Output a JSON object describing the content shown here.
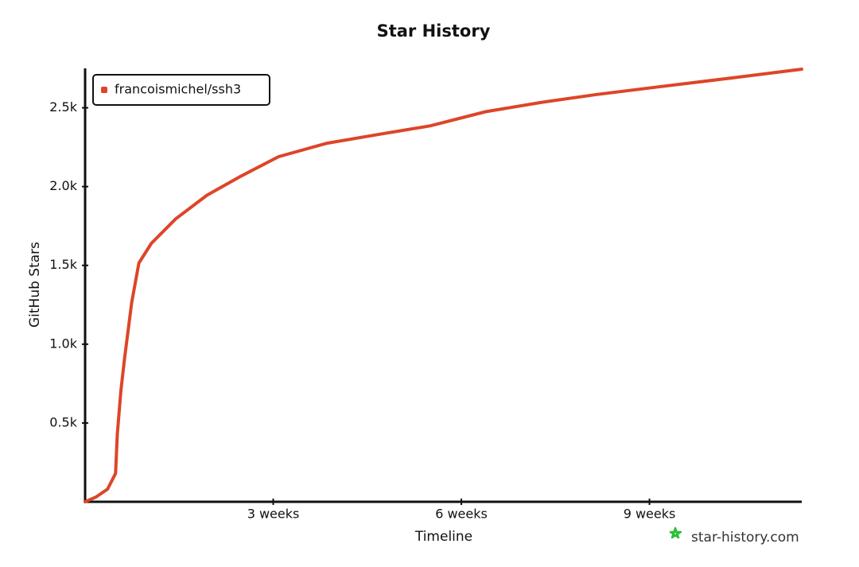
{
  "chart_data": {
    "type": "line",
    "title": "Star History",
    "x_label": "Timeline",
    "y_label": "GitHub Stars",
    "watermark": "star-history.com",
    "x": [
      0,
      1.2,
      2.5,
      3.4,
      3.6,
      4.0,
      4.4,
      5.2,
      6.0,
      7.4,
      10.1,
      13.6,
      17.2,
      21.6,
      27.0,
      33.2,
      38.5,
      44.7,
      51.0,
      57.2,
      64.3,
      72.3,
      80
    ],
    "series": [
      {
        "name": "francoismichel/ssh3",
        "color": "#dd4528",
        "values": [
          0,
          30,
          80,
          180,
          430,
          710,
          910,
          1265,
          1515,
          1640,
          1795,
          1945,
          2060,
          2190,
          2275,
          2335,
          2385,
          2475,
          2535,
          2585,
          2635,
          2690,
          2745
        ]
      }
    ],
    "xlim": [
      0,
      80
    ],
    "xticks": [
      {
        "value": 21,
        "label": "3 weeks"
      },
      {
        "value": 42,
        "label": "6 weeks"
      },
      {
        "value": 63,
        "label": "9 weeks"
      }
    ],
    "ylim": [
      0,
      2750
    ],
    "yticks": [
      {
        "value": 500,
        "label": "0.5k"
      },
      {
        "value": 1000,
        "label": "1.0k"
      },
      {
        "value": 1500,
        "label": "1.5k"
      },
      {
        "value": 2000,
        "label": "2.0k"
      },
      {
        "value": 2500,
        "label": "2.5k"
      }
    ],
    "grid": false,
    "legend": "top-left"
  }
}
